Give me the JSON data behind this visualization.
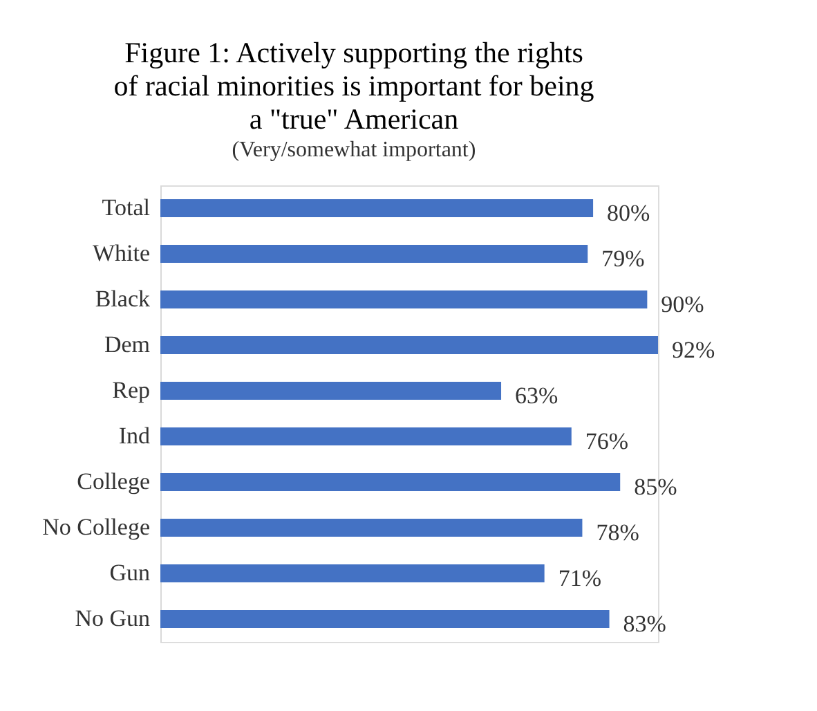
{
  "chart_data": {
    "type": "bar",
    "orientation": "horizontal",
    "title": "Figure 1: Actively supporting the rights\nof racial minorities is important for being\na \"true\" American",
    "subtitle": "(Very/somewhat important)",
    "categories": [
      "Total",
      "White",
      "Black",
      "Dem",
      "Rep",
      "Ind",
      "College",
      "No College",
      "Gun",
      "No Gun"
    ],
    "values": [
      80,
      79,
      90,
      92,
      63,
      76,
      85,
      78,
      71,
      83
    ],
    "value_labels": [
      "80%",
      "79%",
      "90%",
      "92%",
      "63%",
      "76%",
      "85%",
      "78%",
      "71%",
      "83%"
    ],
    "color": "#4472c4",
    "grid": false
  }
}
